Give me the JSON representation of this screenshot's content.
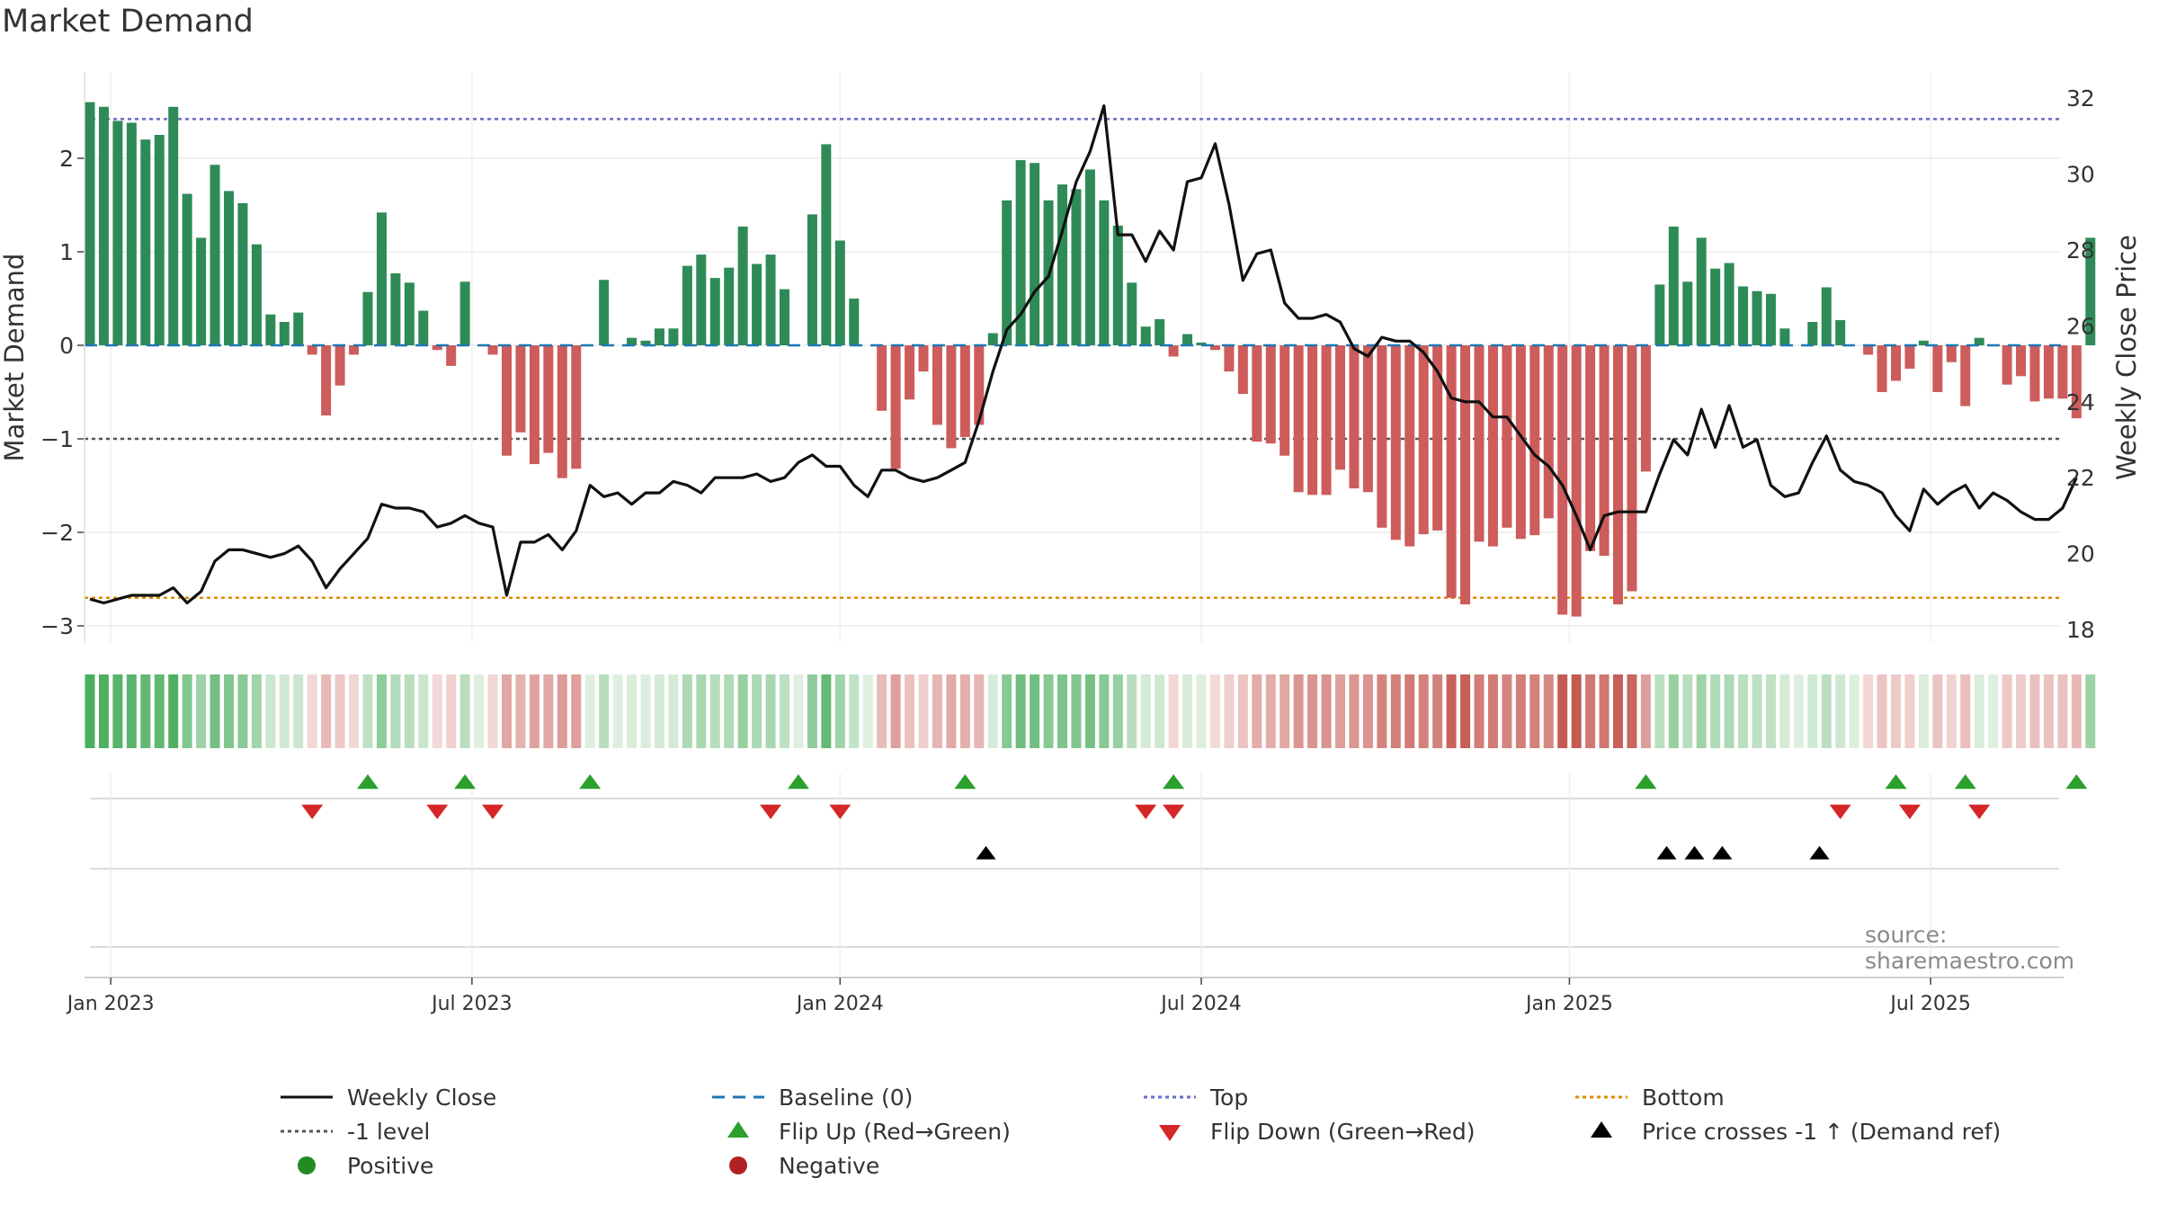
{
  "chart_data": {
    "type": "bar",
    "title": "Market Demand",
    "ylabel": "Market Demand",
    "y2label": "Weekly Close Price",
    "ylim": [
      -3.3,
      2.8
    ],
    "y2lim": [
      17.5,
      32.5
    ],
    "yticks": [
      -3,
      -2,
      -1,
      0,
      1,
      2
    ],
    "yticklabels": [
      "−3",
      "−2",
      "−1",
      "0",
      "1",
      "2"
    ],
    "y2ticks": [
      18,
      20,
      22,
      24,
      26,
      28,
      30,
      32
    ],
    "y2ticklabels": [
      "18",
      "20",
      "22",
      "24",
      "26",
      "28",
      "30",
      "32"
    ],
    "xticks": [
      {
        "week": 1.5,
        "label": "Jan 2023"
      },
      {
        "week": 27.5,
        "label": "Jul 2023"
      },
      {
        "week": 54,
        "label": "Jan 2024"
      },
      {
        "week": 80,
        "label": "Jul 2024"
      },
      {
        "week": 106.5,
        "label": "Jan 2025"
      },
      {
        "week": 132.5,
        "label": "Jul 2025"
      }
    ],
    "top_level": 2.42,
    "bottom_level": -2.7,
    "minus_one_level": -1,
    "baseline": 0,
    "series": [
      {
        "name": "Market Demand",
        "values": [
          2.6,
          2.55,
          2.4,
          2.38,
          2.2,
          2.25,
          2.55,
          1.62,
          1.15,
          1.93,
          1.65,
          1.52,
          1.08,
          0.33,
          0.25,
          0.35,
          -0.1,
          -0.75,
          -0.43,
          -0.1,
          0.57,
          1.42,
          0.77,
          0.67,
          0.37,
          -0.05,
          -0.22,
          0.68,
          0,
          -0.1,
          -1.18,
          -0.93,
          -1.27,
          -1.15,
          -1.42,
          -1.32,
          0,
          0.7,
          0,
          0.08,
          0.05,
          0.18,
          0.18,
          0.85,
          0.97,
          0.72,
          0.83,
          1.27,
          0.87,
          0.97,
          0.6,
          0,
          1.4,
          2.15,
          1.12,
          0.5,
          0,
          -0.7,
          -1.32,
          -0.58,
          -0.28,
          -0.85,
          -1.1,
          -0.98,
          -0.85,
          0.13,
          1.55,
          1.98,
          1.95,
          1.55,
          1.72,
          1.67,
          1.88,
          1.55,
          1.28,
          0.67,
          0.2,
          0.28,
          -0.12,
          0.12,
          0.03,
          -0.05,
          -0.28,
          -0.52,
          -1.03,
          -1.05,
          -1.18,
          -1.57,
          -1.6,
          -1.6,
          -1.33,
          -1.53,
          -1.57,
          -1.95,
          -2.08,
          -2.15,
          -2.02,
          -1.98,
          -2.7,
          -2.77,
          -2.1,
          -2.15,
          -1.95,
          -2.07,
          -2.03,
          -1.85,
          -2.88,
          -2.9,
          -2.2,
          -2.25,
          -2.77,
          -2.63,
          -1.35,
          0.65,
          1.27,
          0.68,
          1.15,
          0.82,
          0.88,
          0.63,
          0.58,
          0.55,
          0.18,
          0,
          0.25,
          0.62,
          0.27,
          0,
          -0.1,
          -0.5,
          -0.38,
          -0.25,
          0.05,
          -0.5,
          -0.18,
          -0.65,
          0.08,
          0,
          -0.42,
          -0.33,
          -0.6,
          -0.57,
          -0.57,
          -0.78,
          1.15
        ]
      },
      {
        "name": "Weekly Close",
        "values": [
          18.8,
          18.7,
          18.8,
          18.9,
          18.9,
          18.9,
          19.1,
          18.7,
          19.0,
          19.8,
          20.1,
          20.1,
          20.0,
          19.9,
          20.0,
          20.2,
          19.8,
          19.1,
          19.6,
          20.0,
          20.4,
          21.3,
          21.2,
          21.2,
          21.1,
          20.7,
          20.8,
          21.0,
          20.8,
          20.7,
          18.9,
          20.3,
          20.3,
          20.5,
          20.1,
          20.6,
          21.8,
          21.5,
          21.6,
          21.3,
          21.6,
          21.6,
          21.9,
          21.8,
          21.6,
          22.0,
          22.0,
          22.0,
          22.1,
          21.9,
          22.0,
          22.4,
          22.6,
          22.3,
          22.3,
          21.8,
          21.5,
          22.2,
          22.2,
          22.0,
          21.9,
          22.0,
          22.2,
          22.4,
          23.5,
          24.8,
          25.9,
          26.3,
          26.9,
          27.3,
          28.5,
          29.8,
          30.6,
          31.8,
          28.4,
          28.4,
          27.7,
          28.5,
          28.0,
          29.8,
          29.9,
          30.8,
          29.2,
          27.2,
          27.9,
          28.0,
          26.6,
          26.2,
          26.2,
          26.3,
          26.1,
          25.4,
          25.2,
          25.7,
          25.6,
          25.6,
          25.3,
          24.8,
          24.1,
          24.0,
          24.0,
          23.6,
          23.6,
          23.1,
          22.6,
          22.3,
          21.8,
          21.0,
          20.1,
          21.0,
          21.1,
          21.1,
          21.1,
          22.1,
          23.0,
          22.6,
          23.8,
          22.8,
          23.9,
          22.8,
          23.0,
          21.8,
          21.5,
          21.6,
          22.4,
          23.1,
          22.2,
          21.9,
          21.8,
          21.6,
          21.0,
          20.6,
          21.7,
          21.3,
          21.6,
          21.8,
          21.2,
          21.6,
          21.4,
          21.1,
          20.9,
          20.9,
          21.2,
          22.0
        ]
      },
      {
        "name": "Flip Up (Red→Green)",
        "weeks": [
          20,
          27,
          36,
          51,
          63,
          78,
          112,
          130,
          135,
          143
        ]
      },
      {
        "name": "Flip Down (Green→Red)",
        "weeks": [
          16,
          25,
          29,
          49,
          54,
          76,
          78,
          126,
          131,
          136
        ]
      },
      {
        "name": "Price crosses -1 ↑ (Demand ref)",
        "weeks": [
          64.5,
          113.5,
          115.5,
          117.5,
          124.5
        ]
      }
    ],
    "legend": [
      {
        "label": "Weekly Close",
        "symbol": "line-black"
      },
      {
        "label": "Baseline (0)",
        "symbol": "dash-blue"
      },
      {
        "label": "Top",
        "symbol": "dot-purple"
      },
      {
        "label": "Bottom",
        "symbol": "dot-orange"
      },
      {
        "label": "-1 level",
        "symbol": "dot-gray"
      },
      {
        "label": "Flip Up (Red→Green)",
        "symbol": "tri-up-green"
      },
      {
        "label": "Flip Down (Green→Red)",
        "symbol": "tri-down-red"
      },
      {
        "label": "Price crosses -1 ↑ (Demand ref)",
        "symbol": "tri-up-black"
      },
      {
        "label": "Positive",
        "symbol": "dot-green"
      },
      {
        "label": "Negative",
        "symbol": "dot-red"
      }
    ],
    "legend_position": "bottom",
    "source": "source: sharemaestro.com",
    "colors": {
      "positive": "#2e8b57",
      "negative": "#cd5c5c",
      "price": "#111111",
      "baseline": "#1f77b4",
      "top": "#6a6acd",
      "bottom": "#e08a00",
      "minus_one": "#555555",
      "flip_up": "#2ca02c",
      "flip_down": "#d62728",
      "cross": "#000000",
      "legend_positive": "#228b22",
      "legend_negative": "#b22222"
    }
  }
}
